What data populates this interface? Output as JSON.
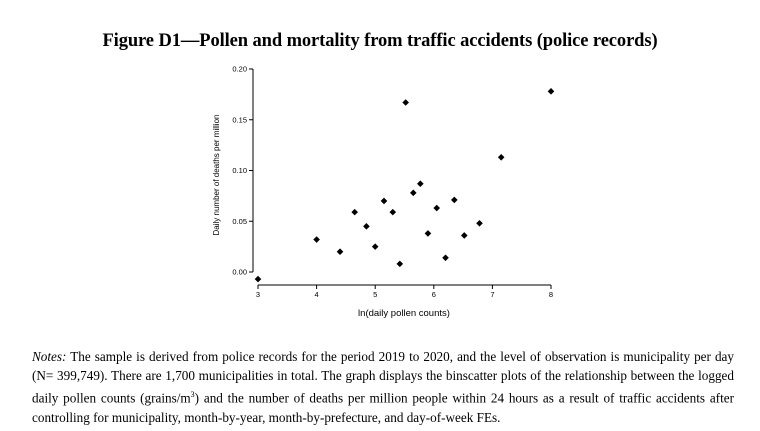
{
  "figure": {
    "title": "Figure D1—Pollen and mortality from traffic accidents (police records)"
  },
  "chart_data": {
    "type": "scatter",
    "title": "",
    "xlabel": "ln(daily pollen counts)",
    "ylabel": "Daily number of deaths per million",
    "xlim": [
      3,
      8
    ],
    "ylim": [
      0,
      0.2
    ],
    "x_ticks": [
      3,
      4,
      5,
      6,
      7,
      8
    ],
    "x_tick_labels": [
      "3",
      "4",
      "5",
      "6",
      "7",
      "8"
    ],
    "y_ticks": [
      0,
      0.05,
      0.1,
      0.15,
      0.2
    ],
    "y_tick_labels": [
      "0.00",
      "0.05",
      "0.10",
      "0.15",
      "0.20"
    ],
    "grid": false,
    "marker": "diamond",
    "marker_color": "#000000",
    "points": [
      {
        "x": 3.0,
        "y": -0.007
      },
      {
        "x": 4.0,
        "y": 0.032
      },
      {
        "x": 4.4,
        "y": 0.02
      },
      {
        "x": 4.65,
        "y": 0.059
      },
      {
        "x": 4.85,
        "y": 0.045
      },
      {
        "x": 5.0,
        "y": 0.025
      },
      {
        "x": 5.15,
        "y": 0.07
      },
      {
        "x": 5.3,
        "y": 0.059
      },
      {
        "x": 5.42,
        "y": 0.008
      },
      {
        "x": 5.52,
        "y": 0.167
      },
      {
        "x": 5.65,
        "y": 0.078
      },
      {
        "x": 5.77,
        "y": 0.087
      },
      {
        "x": 5.9,
        "y": 0.038
      },
      {
        "x": 6.05,
        "y": 0.063
      },
      {
        "x": 6.2,
        "y": 0.014
      },
      {
        "x": 6.35,
        "y": 0.071
      },
      {
        "x": 6.52,
        "y": 0.036
      },
      {
        "x": 6.78,
        "y": 0.048
      },
      {
        "x": 7.15,
        "y": 0.113
      },
      {
        "x": 8.0,
        "y": 0.178
      }
    ]
  },
  "notes": {
    "label": "Notes:",
    "text_1": " The sample is derived from police records for the period 2019 to 2020, and the level of observation is municipality per day (N= 399,749). There are 1,700 municipalities in total. The graph displays the binscatter plots of the relationship between the logged daily pollen counts (grains/m",
    "superscript": "3",
    "text_2": ") and the number of deaths per million people within 24 hours as a result of traffic accidents after controlling for municipality, month-by-year, month-by-prefecture, and day-of-week FEs."
  }
}
